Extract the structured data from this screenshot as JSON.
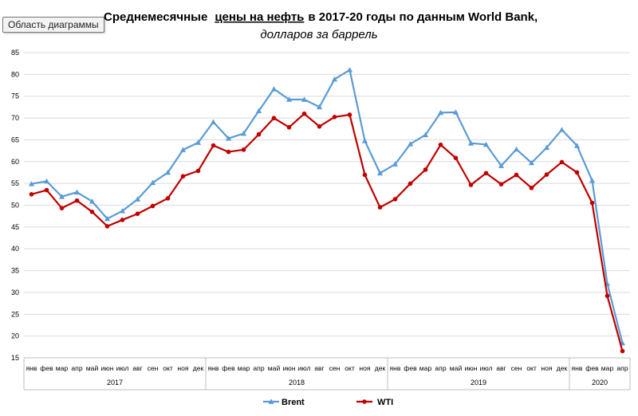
{
  "chart_area_label": "Область диаграммы",
  "chart_data": {
    "type": "line",
    "title_part1": "Среднемесячные",
    "title_part2": "цены на нефть",
    "title_part3": "в 2017-20 годы по данным World Bank,",
    "subtitle": "долларов за баррель",
    "ylim": [
      15,
      85
    ],
    "yticks": [
      15,
      20,
      25,
      30,
      35,
      40,
      45,
      50,
      55,
      60,
      65,
      70,
      75,
      80,
      85
    ],
    "month_labels": [
      "янв",
      "фев",
      "мар",
      "апр",
      "май",
      "июн",
      "июл",
      "авг",
      "сен",
      "окт",
      "ноя",
      "дек",
      "янв",
      "фев",
      "мар",
      "апр",
      "май",
      "июн",
      "июл",
      "авг",
      "сен",
      "окт",
      "ноя",
      "дек",
      "янв",
      "фев",
      "мар",
      "апр",
      "май",
      "июн",
      "июл",
      "авг",
      "сен",
      "окт",
      "ноя",
      "дек",
      "янв",
      "фев",
      "мар",
      "апр"
    ],
    "years": [
      {
        "label": "2017",
        "start": 0,
        "count": 12
      },
      {
        "label": "2018",
        "start": 12,
        "count": 12
      },
      {
        "label": "2019",
        "start": 24,
        "count": 12
      },
      {
        "label": "2020",
        "start": 36,
        "count": 4
      }
    ],
    "series": [
      {
        "name": "Brent",
        "color": "#5b9bd5",
        "marker": "triangle",
        "values": [
          54.9,
          55.5,
          51.97,
          52.98,
          50.87,
          46.89,
          48.69,
          51.37,
          55.16,
          57.51,
          62.71,
          64.37,
          69.08,
          65.32,
          66.45,
          71.63,
          76.65,
          74.24,
          74.25,
          72.53,
          78.89,
          81.03,
          64.75,
          57.36,
          59.41,
          64.03,
          66.14,
          71.23,
          71.32,
          64.22,
          63.92,
          59.04,
          62.83,
          59.71,
          63.21,
          67.31,
          63.65,
          55.66,
          32.01,
          18.38
        ]
      },
      {
        "name": "WTI",
        "color": "#c00000",
        "marker": "circle",
        "values": [
          52.5,
          53.47,
          49.33,
          51.06,
          48.48,
          45.18,
          46.63,
          48.04,
          49.82,
          51.58,
          56.64,
          57.88,
          63.7,
          62.23,
          62.73,
          66.25,
          69.98,
          67.87,
          70.98,
          68.06,
          70.23,
          70.75,
          56.96,
          49.52,
          51.38,
          54.95,
          58.15,
          63.86,
          60.83,
          54.66,
          57.35,
          54.81,
          56.95,
          53.96,
          57.03,
          59.88,
          57.52,
          50.54,
          29.21,
          16.55
        ]
      }
    ],
    "legend": [
      "Brent",
      "WTI"
    ],
    "legend_position": "bottom",
    "grid": true
  }
}
